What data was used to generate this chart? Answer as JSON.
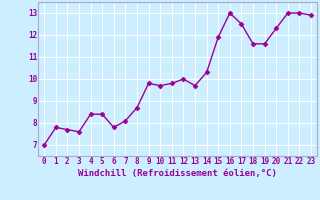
{
  "x": [
    0,
    1,
    2,
    3,
    4,
    5,
    6,
    7,
    8,
    9,
    10,
    11,
    12,
    13,
    14,
    15,
    16,
    17,
    18,
    19,
    20,
    21,
    22,
    23
  ],
  "y": [
    7.0,
    7.8,
    7.7,
    7.6,
    8.4,
    8.4,
    7.8,
    8.1,
    8.7,
    9.8,
    9.7,
    9.8,
    10.0,
    9.7,
    10.3,
    11.9,
    13.0,
    12.5,
    11.6,
    11.6,
    12.3,
    13.0,
    13.0,
    12.9
  ],
  "line_color": "#990099",
  "marker": "D",
  "markersize": 2.5,
  "linewidth": 1.0,
  "xlabel": "Windchill (Refroidissement éolien,°C)",
  "xlabel_fontsize": 6.5,
  "bg_color": "#cceeff",
  "grid_color": "#ffffff",
  "xlim": [
    -0.5,
    23.5
  ],
  "ylim": [
    6.5,
    13.5
  ],
  "yticks": [
    7,
    8,
    9,
    10,
    11,
    12,
    13
  ],
  "xticks": [
    0,
    1,
    2,
    3,
    4,
    5,
    6,
    7,
    8,
    9,
    10,
    11,
    12,
    13,
    14,
    15,
    16,
    17,
    18,
    19,
    20,
    21,
    22,
    23
  ],
  "tick_fontsize": 5.5,
  "tick_color": "#990099",
  "label_color": "#990099",
  "spine_color": "#aaaacc"
}
